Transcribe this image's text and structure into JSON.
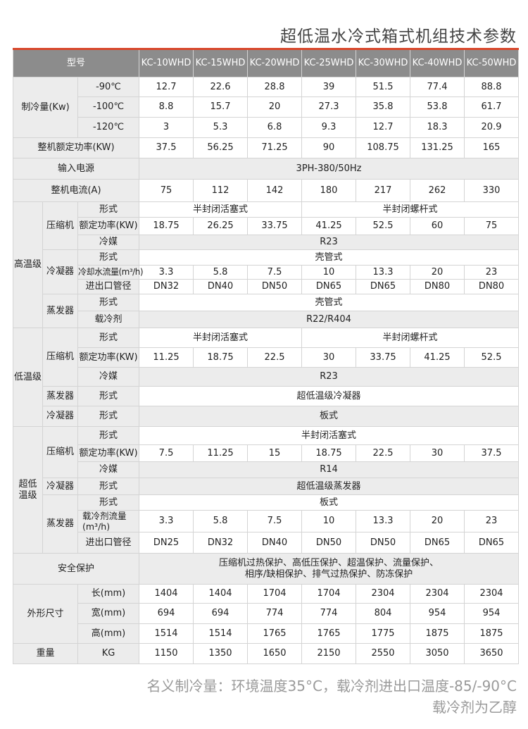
{
  "title": "超低温水冷式箱式机组技术参数",
  "header": {
    "label": "型号",
    "models": [
      "KC-10WHD",
      "KC-15WHD",
      "KC-20WHD",
      "KC-25WHD",
      "KC-30WHD",
      "KC-40WHD",
      "KC-50WHD"
    ]
  },
  "cooling_capacity": {
    "label": "制冷量(Kw)",
    "rows": [
      {
        "temp": "-90℃",
        "values": [
          "12.7",
          "22.6",
          "28.8",
          "39",
          "51.5",
          "77.4",
          "88.8"
        ]
      },
      {
        "temp": "-100℃",
        "values": [
          "8.8",
          "15.7",
          "20",
          "27.3",
          "35.8",
          "53.8",
          "61.7"
        ]
      },
      {
        "temp": "-120℃",
        "values": [
          "3",
          "5.3",
          "6.8",
          "9.3",
          "12.7",
          "18.3",
          "20.9"
        ]
      }
    ]
  },
  "rated_power": {
    "label": "整机额定功率(KW)",
    "values": [
      "37.5",
      "56.25",
      "71.25",
      "90",
      "108.75",
      "131.25",
      "165"
    ]
  },
  "power_supply": {
    "label": "输入电源",
    "value": "3PH-380/50Hz"
  },
  "current": {
    "label": "整机电流(A)",
    "values": [
      "75",
      "112",
      "142",
      "180",
      "217",
      "262",
      "330"
    ]
  },
  "high_stage": {
    "label": "高温级",
    "compressor": {
      "label": "压缩机",
      "type_label": "形式",
      "types": [
        "半封闭活塞式",
        "半封闭螺杆式"
      ],
      "power_label": "额定功率(KW)",
      "power": [
        "18.75",
        "26.25",
        "33.75",
        "41.25",
        "52.5",
        "60",
        "75"
      ],
      "refrigerant_label": "冷媒",
      "refrigerant": "R23"
    },
    "condenser": {
      "label": "冷凝器",
      "type_label": "形式",
      "type": "壳管式",
      "flow_label": "冷却水流量(m³/h)",
      "flow": [
        "3.3",
        "5.8",
        "7.5",
        "10",
        "13.3",
        "20",
        "23"
      ],
      "pipe_label": "进出口管径",
      "pipe": [
        "DN32",
        "DN40",
        "DN50",
        "DN65",
        "DN65",
        "DN80",
        "DN80"
      ]
    },
    "evaporator": {
      "label": "蒸发器",
      "type_label": "形式",
      "type": "壳管式",
      "coolant_label": "载冷剂",
      "coolant": "R22/R404"
    }
  },
  "low_stage": {
    "label": "低温级",
    "compressor": {
      "label": "压缩机",
      "type_label": "形式",
      "types": [
        "半封闭活塞式",
        "半封闭螺杆式"
      ],
      "power_label": "额定功率(KW)",
      "power": [
        "11.25",
        "18.75",
        "22.5",
        "30",
        "33.75",
        "41.25",
        "52.5"
      ],
      "refrigerant_label": "冷媒",
      "refrigerant": "R23"
    },
    "evaporator": {
      "label": "蒸发器",
      "type_label": "形式",
      "type": "超低温级冷凝器"
    },
    "condenser": {
      "label": "冷凝器",
      "type_label": "形式",
      "type": "板式"
    }
  },
  "ultra_stage": {
    "label": "超低温级",
    "compressor": {
      "label": "压缩机",
      "type_label": "形式",
      "type": "半封闭活塞式",
      "power_label": "额定功率(KW)",
      "power": [
        "7.5",
        "11.25",
        "15",
        "18.75",
        "22.5",
        "30",
        "37.5"
      ],
      "refrigerant_label": "冷媒",
      "refrigerant": "R14"
    },
    "condenser": {
      "label": "冷凝器",
      "type_label": "形式",
      "type": "超低温级蒸发器"
    },
    "evaporator": {
      "label": "蒸发器",
      "type_label": "形式",
      "type": "板式",
      "flow_label": "载冷剂流量(m³/h)",
      "flow": [
        "3.3",
        "5.8",
        "7.5",
        "10",
        "13.3",
        "20",
        "23"
      ],
      "pipe_label": "进出口管径",
      "pipe": [
        "DN25",
        "DN32",
        "DN40",
        "DN50",
        "DN50",
        "DN65",
        "DN65"
      ]
    }
  },
  "safety": {
    "label": "安全保护",
    "lines": [
      "压缩机过热保护、高低压保护、超温保护、流量保护、",
      "相序/缺相保护、排气过热保护、防冻保护"
    ]
  },
  "dimensions": {
    "label": "外形尺寸",
    "rows": [
      {
        "label": "长(mm)",
        "values": [
          "1404",
          "1404",
          "1704",
          "1704",
          "2304",
          "2304",
          "2304"
        ]
      },
      {
        "label": "宽(mm)",
        "values": [
          "694",
          "694",
          "774",
          "774",
          "804",
          "954",
          "954"
        ]
      },
      {
        "label": "高(mm)",
        "values": [
          "1514",
          "1514",
          "1765",
          "1765",
          "1775",
          "1875",
          "1875"
        ]
      }
    ]
  },
  "weight": {
    "label": "重量",
    "unit": "KG",
    "values": [
      "1150",
      "1350",
      "1650",
      "2150",
      "2550",
      "3050",
      "3650"
    ]
  },
  "notes": [
    "名义制冷量：环境温度35°C，载冷剂进出口温度-85/-90°C",
    "载冷剂为乙醇"
  ],
  "colors": {
    "accent": "#d9472b",
    "header_bg": "#8c8c8c",
    "label_bg": "#ececec"
  }
}
